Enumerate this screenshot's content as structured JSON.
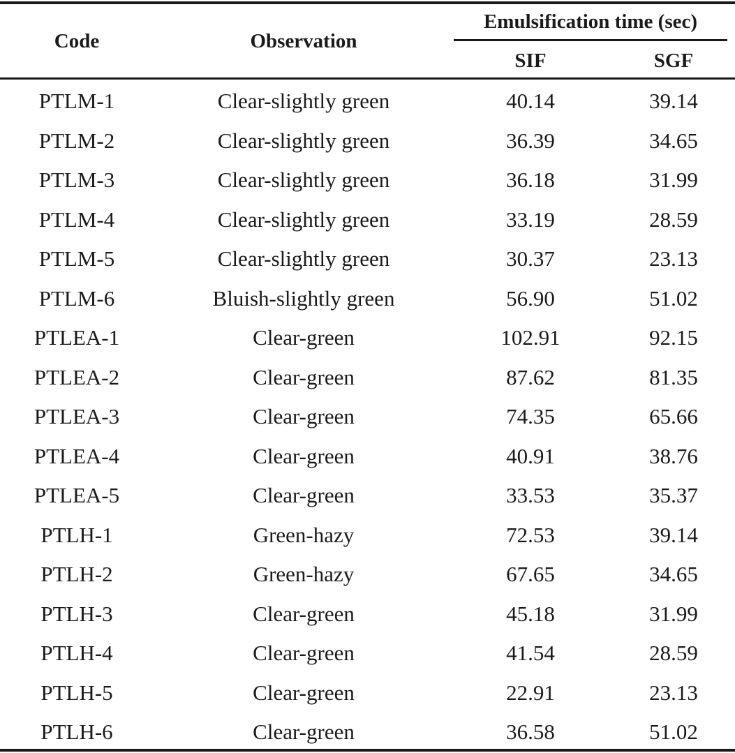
{
  "table": {
    "headers": {
      "code": "Code",
      "observation": "Observation",
      "group": "Emulsification time (sec)",
      "sif": "SIF",
      "sgf": "SGF"
    },
    "rows": [
      {
        "code": "PTLM-1",
        "observation": "Clear-slightly green",
        "sif": "40.14",
        "sgf": "39.14"
      },
      {
        "code": "PTLM-2",
        "observation": "Clear-slightly green",
        "sif": "36.39",
        "sgf": "34.65"
      },
      {
        "code": "PTLM-3",
        "observation": "Clear-slightly green",
        "sif": "36.18",
        "sgf": "31.99"
      },
      {
        "code": "PTLM-4",
        "observation": "Clear-slightly green",
        "sif": "33.19",
        "sgf": "28.59"
      },
      {
        "code": "PTLM-5",
        "observation": "Clear-slightly green",
        "sif": "30.37",
        "sgf": "23.13"
      },
      {
        "code": "PTLM-6",
        "observation": "Bluish-slightly green",
        "sif": "56.90",
        "sgf": "51.02"
      },
      {
        "code": "PTLEA-1",
        "observation": "Clear-green",
        "sif": "102.91",
        "sgf": "92.15"
      },
      {
        "code": "PTLEA-2",
        "observation": "Clear-green",
        "sif": "87.62",
        "sgf": "81.35"
      },
      {
        "code": "PTLEA-3",
        "observation": "Clear-green",
        "sif": "74.35",
        "sgf": "65.66"
      },
      {
        "code": "PTLEA-4",
        "observation": "Clear-green",
        "sif": "40.91",
        "sgf": "38.76"
      },
      {
        "code": "PTLEA-5",
        "observation": "Clear-green",
        "sif": "33.53",
        "sgf": "35.37"
      },
      {
        "code": "PTLH-1",
        "observation": "Green-hazy",
        "sif": "72.53",
        "sgf": "39.14"
      },
      {
        "code": "PTLH-2",
        "observation": "Green-hazy",
        "sif": "67.65",
        "sgf": "34.65"
      },
      {
        "code": "PTLH-3",
        "observation": "Clear-green",
        "sif": "45.18",
        "sgf": "31.99"
      },
      {
        "code": "PTLH-4",
        "observation": "Clear-green",
        "sif": "41.54",
        "sgf": "28.59"
      },
      {
        "code": "PTLH-5",
        "observation": "Clear-green",
        "sif": "22.91",
        "sgf": "23.13"
      },
      {
        "code": "PTLH-6",
        "observation": "Clear-green",
        "sif": "36.58",
        "sgf": "51.02"
      }
    ]
  }
}
